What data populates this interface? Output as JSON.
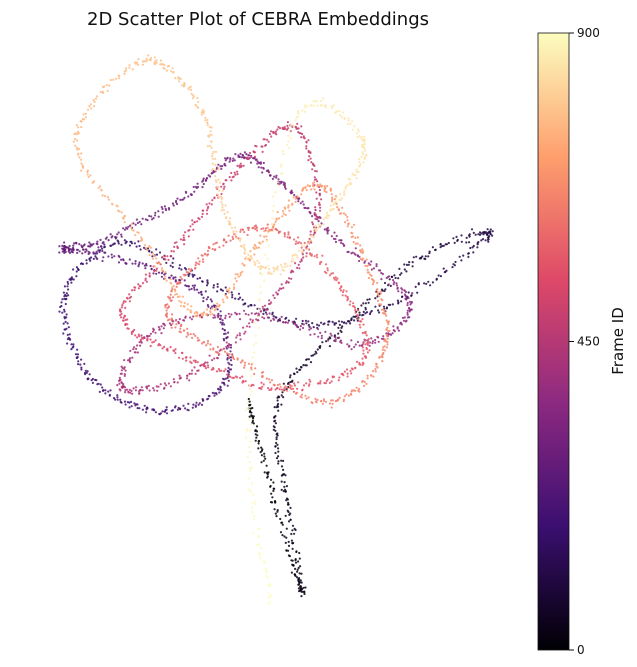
{
  "chart_data": {
    "type": "scatter",
    "title": "2D Scatter Plot of CEBRA Embeddings",
    "xlabel": "",
    "ylabel": "",
    "axes_visible": false,
    "grid": false,
    "color_by": "frame_id",
    "colormap": "magma",
    "colorbar": {
      "label": "Frame ID",
      "range": [
        0,
        900
      ],
      "ticks": [
        0,
        450,
        900
      ],
      "tick_labels": [
        "0",
        "450",
        "900"
      ],
      "stops": [
        "#000004",
        "#3b0f70",
        "#8c2981",
        "#de4968",
        "#fe9f6d",
        "#fcfdbf"
      ]
    },
    "point_color_scale_alpha": 0.85,
    "xlim": [
      -1,
      1
    ],
    "ylim": [
      -1,
      1
    ],
    "trajectory": [
      {
        "frame": 0,
        "x": -0.05,
        "y": -0.25
      },
      {
        "frame": 15,
        "x": 0.05,
        "y": -0.55
      },
      {
        "frame": 30,
        "x": 0.18,
        "y": -0.9
      },
      {
        "frame": 45,
        "x": 0.12,
        "y": -0.6
      },
      {
        "frame": 60,
        "x": 0.08,
        "y": -0.25
      },
      {
        "frame": 75,
        "x": 0.35,
        "y": 0.0
      },
      {
        "frame": 90,
        "x": 0.7,
        "y": 0.25
      },
      {
        "frame": 105,
        "x": 1.0,
        "y": 0.33
      },
      {
        "frame": 120,
        "x": 0.6,
        "y": 0.1
      },
      {
        "frame": 135,
        "x": 0.2,
        "y": 0.02
      },
      {
        "frame": 150,
        "x": -0.2,
        "y": 0.15
      },
      {
        "frame": 165,
        "x": -0.6,
        "y": 0.3
      },
      {
        "frame": 180,
        "x": -0.85,
        "y": 0.12
      },
      {
        "frame": 195,
        "x": -0.75,
        "y": -0.15
      },
      {
        "frame": 210,
        "x": -0.45,
        "y": -0.28
      },
      {
        "frame": 225,
        "x": -0.15,
        "y": -0.18
      },
      {
        "frame": 240,
        "x": -0.2,
        "y": 0.08
      },
      {
        "frame": 255,
        "x": -0.5,
        "y": 0.22
      },
      {
        "frame": 270,
        "x": -0.85,
        "y": 0.28
      },
      {
        "frame": 285,
        "x": -0.7,
        "y": 0.3
      },
      {
        "frame": 300,
        "x": -0.35,
        "y": 0.45
      },
      {
        "frame": 315,
        "x": -0.1,
        "y": 0.6
      },
      {
        "frame": 330,
        "x": 0.1,
        "y": 0.5
      },
      {
        "frame": 345,
        "x": 0.35,
        "y": 0.3
      },
      {
        "frame": 360,
        "x": 0.65,
        "y": 0.1
      },
      {
        "frame": 375,
        "x": 0.45,
        "y": -0.05
      },
      {
        "frame": 390,
        "x": 0.0,
        "y": 0.05
      },
      {
        "frame": 405,
        "x": -0.45,
        "y": 0.0
      },
      {
        "frame": 420,
        "x": -0.6,
        "y": -0.2
      },
      {
        "frame": 435,
        "x": -0.3,
        "y": -0.15
      },
      {
        "frame": 450,
        "x": 0.05,
        "y": 0.1
      },
      {
        "frame": 465,
        "x": 0.25,
        "y": 0.4
      },
      {
        "frame": 480,
        "x": 0.15,
        "y": 0.7
      },
      {
        "frame": 495,
        "x": -0.1,
        "y": 0.55
      },
      {
        "frame": 510,
        "x": -0.35,
        "y": 0.3
      },
      {
        "frame": 525,
        "x": -0.6,
        "y": 0.05
      },
      {
        "frame": 540,
        "x": -0.3,
        "y": -0.1
      },
      {
        "frame": 555,
        "x": 0.1,
        "y": -0.2
      },
      {
        "frame": 570,
        "x": 0.45,
        "y": -0.1
      },
      {
        "frame": 585,
        "x": 0.35,
        "y": 0.15
      },
      {
        "frame": 600,
        "x": 0.05,
        "y": 0.35
      },
      {
        "frame": 615,
        "x": -0.25,
        "y": 0.25
      },
      {
        "frame": 630,
        "x": -0.4,
        "y": 0.05
      },
      {
        "frame": 645,
        "x": -0.1,
        "y": -0.1
      },
      {
        "frame": 660,
        "x": 0.3,
        "y": -0.25
      },
      {
        "frame": 675,
        "x": 0.55,
        "y": -0.05
      },
      {
        "frame": 690,
        "x": 0.45,
        "y": 0.25
      },
      {
        "frame": 705,
        "x": 0.25,
        "y": 0.5
      },
      {
        "frame": 720,
        "x": 0.0,
        "y": 0.3
      },
      {
        "frame": 735,
        "x": -0.25,
        "y": 0.05
      },
      {
        "frame": 750,
        "x": -0.5,
        "y": 0.3
      },
      {
        "frame": 765,
        "x": -0.8,
        "y": 0.65
      },
      {
        "frame": 780,
        "x": -0.5,
        "y": 0.93
      },
      {
        "frame": 795,
        "x": -0.25,
        "y": 0.75
      },
      {
        "frame": 810,
        "x": -0.15,
        "y": 0.4
      },
      {
        "frame": 825,
        "x": 0.05,
        "y": 0.2
      },
      {
        "frame": 840,
        "x": 0.3,
        "y": 0.4
      },
      {
        "frame": 855,
        "x": 0.45,
        "y": 0.65
      },
      {
        "frame": 870,
        "x": 0.15,
        "y": 0.72
      },
      {
        "frame": 885,
        "x": -0.05,
        "y": -0.3
      },
      {
        "frame": 900,
        "x": 0.05,
        "y": -0.95
      }
    ]
  }
}
